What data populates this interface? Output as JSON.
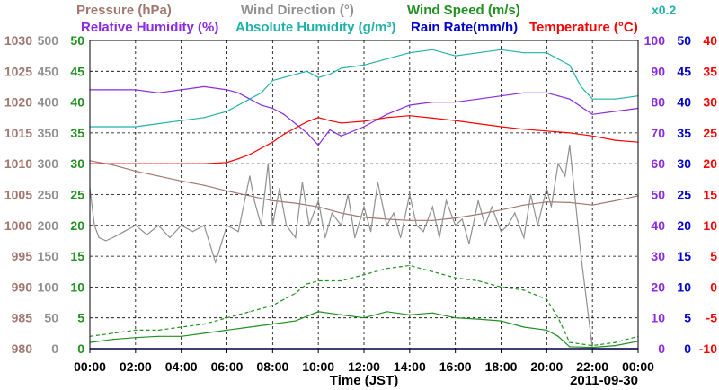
{
  "chart_data": {
    "type": "line",
    "date_label": "2011-09-30",
    "xlabel": "Time (JST)",
    "x_ticks": [
      "00:00",
      "02:00",
      "04:00",
      "06:00",
      "08:00",
      "10:00",
      "12:00",
      "14:00",
      "16:00",
      "18:00",
      "20:00",
      "22:00",
      "00:00"
    ],
    "xlim_hours": [
      0,
      24
    ],
    "grid": true,
    "legend": [
      [
        {
          "text": "Pressure (hPa)",
          "color": "#a07870"
        },
        {
          "text": "Wind Direction (°)",
          "color": "#909090"
        },
        {
          "text": "Wind Speed (m/s)",
          "color": "#209020"
        }
      ],
      [
        {
          "text": "Relative Humidity (%)",
          "color": "#8a2be2"
        },
        {
          "text": "Absolute Humidity (g/m³)",
          "color": "#20b2aa"
        },
        {
          "text": "Rain Rate(mm/h)",
          "color": "#0000cc"
        },
        {
          "text": "Temperature (°C)",
          "color": "#ff0000"
        }
      ]
    ],
    "scale_note": {
      "text": "x0.2",
      "color": "#20b2aa"
    },
    "axes": [
      {
        "id": "pressure",
        "side": "left",
        "color": "#a07870",
        "min": 980,
        "max": 1030,
        "ticks": [
          "980",
          "985",
          "990",
          "995",
          "1000",
          "1005",
          "1010",
          "1015",
          "1020",
          "1025",
          "1030"
        ]
      },
      {
        "id": "wind_dir",
        "side": "left",
        "color": "#909090",
        "min": 0,
        "max": 500,
        "ticks": [
          "0",
          "50",
          "100",
          "150",
          "200",
          "250",
          "300",
          "350",
          "400",
          "450",
          "500"
        ]
      },
      {
        "id": "wind_speed",
        "side": "left",
        "color": "#209020",
        "min": 0,
        "max": 50,
        "ticks": [
          "0",
          "5",
          "10",
          "15",
          "20",
          "25",
          "30",
          "35",
          "40",
          "45",
          "50"
        ]
      },
      {
        "id": "humidity",
        "side": "right",
        "color": "#8a2be2",
        "min": 0,
        "max": 100,
        "ticks": [
          "0",
          "10",
          "20",
          "30",
          "40",
          "50",
          "60",
          "70",
          "80",
          "90",
          "100"
        ]
      },
      {
        "id": "rain",
        "side": "right",
        "color": "#0000cc",
        "min": 0,
        "max": 50,
        "ticks": [
          "0",
          "5",
          "10",
          "15",
          "20",
          "25",
          "30",
          "35",
          "40",
          "45",
          "50"
        ]
      },
      {
        "id": "temperature",
        "side": "right",
        "color": "#ff0000",
        "min": -10,
        "max": 40,
        "ticks": [
          "-10",
          "-5",
          "0",
          "5",
          "10",
          "15",
          "20",
          "25",
          "30",
          "35",
          "40"
        ]
      }
    ],
    "series": [
      {
        "name": "Pressure (hPa)",
        "axis": "pressure",
        "color": "#a07870",
        "style": "solid",
        "x": [
          0,
          1,
          2,
          3,
          4,
          5,
          6,
          7,
          8,
          9,
          10,
          11,
          12,
          13,
          14,
          15,
          16,
          17,
          18,
          19,
          20,
          21,
          22,
          23,
          24
        ],
        "y": [
          1010.5,
          1009.8,
          1008.8,
          1008.0,
          1007.2,
          1006.5,
          1005.6,
          1004.8,
          1004.0,
          1003.6,
          1003.0,
          1002.0,
          1001.3,
          1001.0,
          1000.8,
          1000.8,
          1001.2,
          1001.8,
          1002.5,
          1003.3,
          1003.8,
          1003.7,
          1003.3,
          1004.0,
          1004.8
        ]
      },
      {
        "name": "Relative Humidity (%)",
        "axis": "humidity",
        "color": "#8a2be2",
        "style": "solid",
        "x": [
          0,
          1,
          2,
          3,
          4,
          5,
          6,
          6.5,
          7,
          7.5,
          8,
          8.5,
          9,
          9.5,
          10,
          10.5,
          11,
          12,
          13,
          14,
          15,
          16,
          17,
          18,
          19,
          20,
          20.5,
          21,
          22,
          23,
          24
        ],
        "y": [
          84,
          84,
          84,
          83,
          84,
          85,
          84,
          83,
          81,
          79,
          78,
          76,
          73,
          70,
          66,
          71,
          69,
          72,
          76,
          79,
          80,
          80,
          81,
          82,
          83,
          83,
          82,
          81,
          76,
          77,
          78
        ]
      },
      {
        "name": "Absolute Humidity (g/m³)",
        "axis": "humidity",
        "color": "#20b2aa",
        "style": "solid",
        "x": [
          0,
          1,
          2,
          3,
          4,
          5,
          6,
          6.5,
          7,
          7.5,
          8,
          8.5,
          9,
          9.5,
          10,
          10.5,
          11,
          12,
          13,
          14,
          15,
          16,
          17,
          18,
          19,
          20,
          20.5,
          21,
          21.5,
          22,
          23,
          24
        ],
        "y": [
          72,
          72,
          72,
          73,
          74,
          75,
          77,
          79,
          81,
          83,
          87,
          88,
          89,
          90,
          88,
          89,
          91,
          92,
          94,
          96,
          97,
          95,
          96,
          97,
          96,
          96,
          94,
          92,
          85,
          81,
          81,
          82
        ]
      },
      {
        "name": "Temperature (°C)",
        "axis": "temperature",
        "color": "#ff0000",
        "style": "solid",
        "x": [
          0,
          1,
          2,
          3,
          4,
          5,
          6,
          6.5,
          7,
          7.5,
          8,
          8.5,
          9,
          9.5,
          10,
          10.5,
          11,
          12,
          13,
          14,
          15,
          16,
          17,
          18,
          19,
          20,
          21,
          22,
          23,
          24
        ],
        "y": [
          20,
          20,
          20,
          20,
          20,
          20,
          20.2,
          20.8,
          21.5,
          22.5,
          23.5,
          24.8,
          25.8,
          26.8,
          27.5,
          27.0,
          26.6,
          26.9,
          27.5,
          27.8,
          27.4,
          27.0,
          26.5,
          26.0,
          25.6,
          25.3,
          25.0,
          24.5,
          23.8,
          23.5
        ]
      },
      {
        "name": "Wind Direction (°)",
        "axis": "wind_dir",
        "color": "#909090",
        "style": "jagged",
        "x": [
          0,
          0.2,
          0.4,
          0.7,
          1,
          1.5,
          2,
          2.5,
          3,
          3.5,
          4,
          4.5,
          5,
          5.5,
          6,
          6.5,
          7,
          7.2,
          7.5,
          7.8,
          8,
          8.3,
          8.6,
          9,
          9.3,
          9.6,
          10,
          10.3,
          10.6,
          11,
          11.3,
          11.6,
          12,
          12.3,
          12.6,
          13,
          13.3,
          13.6,
          14,
          14.3,
          14.6,
          15,
          15.3,
          15.6,
          16,
          16.3,
          16.6,
          17,
          17.3,
          17.6,
          18,
          18.3,
          18.6,
          19,
          19.3,
          19.6,
          20,
          20.2,
          20.5,
          20.8,
          21,
          21.5,
          22,
          22.5,
          23,
          23.5,
          24
        ],
        "y": [
          260,
          200,
          180,
          175,
          180,
          190,
          200,
          185,
          200,
          180,
          200,
          190,
          200,
          140,
          200,
          190,
          280,
          240,
          200,
          300,
          200,
          260,
          200,
          180,
          270,
          200,
          240,
          180,
          220,
          200,
          250,
          180,
          230,
          190,
          270,
          200,
          220,
          180,
          250,
          200,
          190,
          230,
          180,
          240,
          200,
          210,
          170,
          240,
          200,
          230,
          190,
          200,
          220,
          180,
          250,
          200,
          260,
          230,
          300,
          280,
          330,
          150,
          0,
          0,
          0,
          0,
          0
        ]
      },
      {
        "name": "Wind Speed (m/s)",
        "axis": "wind_speed",
        "color": "#209020",
        "style": "solid",
        "x": [
          0,
          1,
          2,
          3,
          4,
          5,
          6,
          7,
          8,
          9,
          10,
          11,
          12,
          13,
          14,
          15,
          16,
          17,
          18,
          19,
          20,
          20.5,
          21,
          22,
          23,
          24
        ],
        "y": [
          1,
          1.5,
          1.8,
          2,
          2,
          2.5,
          3,
          3.5,
          4,
          4.5,
          6,
          5.5,
          5,
          6,
          5.5,
          5.8,
          5,
          4.8,
          4.5,
          3.5,
          3,
          2,
          0.3,
          0.2,
          0.5,
          1.2
        ]
      },
      {
        "name": "Wind Speed gust (m/s)",
        "axis": "wind_speed",
        "color": "#209020",
        "style": "dashed",
        "x": [
          0,
          1,
          2,
          3,
          4,
          5,
          6,
          7,
          8,
          8.5,
          9,
          9.5,
          10,
          11,
          12,
          13,
          14,
          15,
          16,
          17,
          18,
          19,
          20,
          20.5,
          21,
          22,
          23,
          24
        ],
        "y": [
          2,
          2.5,
          3,
          3,
          3.5,
          4,
          5,
          6,
          7,
          8,
          9,
          10.5,
          11,
          11,
          12,
          13,
          13.5,
          12.5,
          11.5,
          11,
          10,
          9.5,
          8,
          5,
          1,
          0.5,
          1,
          2
        ]
      },
      {
        "name": "Rain Rate(mm/h)",
        "axis": "rain",
        "color": "#0000cc",
        "style": "solid",
        "x": [
          0,
          24
        ],
        "y": [
          0,
          0
        ]
      }
    ]
  }
}
